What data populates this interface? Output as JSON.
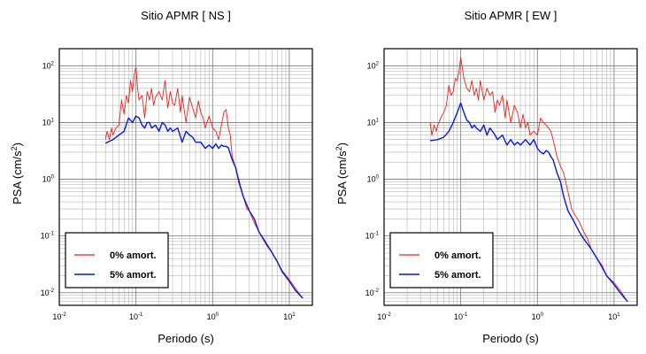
{
  "chart_data": [
    {
      "type": "line",
      "title": "Sitio APMR [ NS ]",
      "xlabel": "Periodo (s)",
      "ylabel": {
        "base": "PSA (cm/s",
        "sup": "2",
        "close": ")"
      },
      "xscale": "log",
      "yscale": "log",
      "xlim": [
        0.01,
        20
      ],
      "ylim": [
        0.006,
        200
      ],
      "grid": true,
      "legend_position": "lower-left",
      "xticks": [
        {
          "base": "10",
          "exp": "-2",
          "value": 0.01
        },
        {
          "base": "10",
          "exp": "-1",
          "value": 0.1
        },
        {
          "base": "10",
          "exp": "0",
          "value": 1
        },
        {
          "base": "10",
          "exp": "1",
          "value": 10
        }
      ],
      "yticks": [
        {
          "base": "10",
          "exp": "-2",
          "value": 0.01
        },
        {
          "base": "10",
          "exp": "-1",
          "value": 0.1
        },
        {
          "base": "10",
          "exp": "0",
          "value": 1
        },
        {
          "base": "10",
          "exp": "1",
          "value": 10
        },
        {
          "base": "10",
          "exp": "2",
          "value": 100
        }
      ],
      "series": [
        {
          "name": "0% amort.",
          "color": "#e8231f",
          "x": [
            0.04,
            0.042,
            0.045,
            0.048,
            0.05,
            0.055,
            0.06,
            0.065,
            0.07,
            0.075,
            0.08,
            0.085,
            0.09,
            0.095,
            0.1,
            0.105,
            0.11,
            0.12,
            0.13,
            0.14,
            0.15,
            0.16,
            0.17,
            0.18,
            0.2,
            0.22,
            0.24,
            0.26,
            0.28,
            0.3,
            0.32,
            0.35,
            0.38,
            0.4,
            0.45,
            0.5,
            0.55,
            0.6,
            0.65,
            0.7,
            0.75,
            0.8,
            0.9,
            1.0,
            1.1,
            1.2,
            1.3,
            1.4,
            1.5,
            1.6,
            1.7,
            1.8,
            1.9,
            2.0,
            2.2,
            2.5,
            2.8,
            3.0,
            3.5,
            4.0,
            4.5,
            5.0,
            6.0,
            7.0,
            8.0,
            10,
            12,
            15
          ],
          "y": [
            5,
            7,
            5,
            8,
            6,
            8,
            9,
            25,
            14,
            30,
            22,
            55,
            35,
            70,
            95,
            40,
            25,
            30,
            12,
            35,
            25,
            40,
            20,
            28,
            35,
            25,
            55,
            18,
            35,
            22,
            20,
            40,
            15,
            30,
            10,
            28,
            18,
            12,
            24,
            15,
            12,
            8,
            13,
            8,
            7,
            5,
            9,
            15,
            17,
            8,
            6,
            2.5,
            2.0,
            1.5,
            1.0,
            0.5,
            0.3,
            0.28,
            0.17,
            0.12,
            0.09,
            0.07,
            0.05,
            0.035,
            0.025,
            0.017,
            0.012,
            0.008
          ]
        },
        {
          "name": "5% amort.",
          "color": "#0a18d8",
          "x": [
            0.04,
            0.05,
            0.06,
            0.07,
            0.08,
            0.09,
            0.1,
            0.11,
            0.12,
            0.13,
            0.14,
            0.15,
            0.16,
            0.18,
            0.2,
            0.22,
            0.24,
            0.26,
            0.28,
            0.3,
            0.35,
            0.4,
            0.45,
            0.5,
            0.55,
            0.6,
            0.7,
            0.8,
            0.9,
            1.0,
            1.1,
            1.2,
            1.3,
            1.4,
            1.5,
            1.6,
            1.8,
            2.0,
            2.2,
            2.5,
            3.0,
            3.5,
            4.0,
            5.0,
            6.0,
            7.0,
            8.0,
            10,
            12,
            15
          ],
          "y": [
            4.3,
            5,
            6,
            7,
            12,
            10,
            13,
            12,
            9,
            8,
            10,
            10,
            8,
            9,
            7,
            10,
            9,
            7,
            8,
            7,
            8,
            4.5,
            7,
            6,
            5.5,
            4.5,
            4.5,
            3.5,
            4,
            3.5,
            4.2,
            3.5,
            4,
            3.8,
            3.8,
            3.6,
            2.2,
            1.6,
            0.9,
            0.5,
            0.28,
            0.2,
            0.12,
            0.075,
            0.05,
            0.035,
            0.024,
            0.016,
            0.011,
            0.008
          ]
        }
      ]
    },
    {
      "type": "line",
      "title": "Sitio APMR [ EW ]",
      "xlabel": "Periodo (s)",
      "ylabel": {
        "base": "PSA (cm/s",
        "sup": "2",
        "close": ")"
      },
      "xscale": "log",
      "yscale": "log",
      "xlim": [
        0.01,
        20
      ],
      "ylim": [
        0.006,
        200
      ],
      "grid": true,
      "legend_position": "lower-left",
      "xticks": [
        {
          "base": "10",
          "exp": "-2",
          "value": 0.01
        },
        {
          "base": "10",
          "exp": "-1",
          "value": 0.1
        },
        {
          "base": "10",
          "exp": "0",
          "value": 1
        },
        {
          "base": "10",
          "exp": "1",
          "value": 10
        }
      ],
      "yticks": [
        {
          "base": "10",
          "exp": "-2",
          "value": 0.01
        },
        {
          "base": "10",
          "exp": "-1",
          "value": 0.1
        },
        {
          "base": "10",
          "exp": "0",
          "value": 1
        },
        {
          "base": "10",
          "exp": "1",
          "value": 10
        },
        {
          "base": "10",
          "exp": "2",
          "value": 100
        }
      ],
      "series": [
        {
          "name": "0% amort.",
          "color": "#e8231f",
          "x": [
            0.04,
            0.042,
            0.045,
            0.048,
            0.05,
            0.055,
            0.06,
            0.065,
            0.07,
            0.075,
            0.08,
            0.085,
            0.09,
            0.095,
            0.1,
            0.105,
            0.11,
            0.12,
            0.13,
            0.14,
            0.15,
            0.16,
            0.17,
            0.18,
            0.2,
            0.22,
            0.24,
            0.26,
            0.28,
            0.3,
            0.32,
            0.35,
            0.38,
            0.4,
            0.45,
            0.5,
            0.55,
            0.6,
            0.65,
            0.7,
            0.75,
            0.8,
            0.9,
            1.0,
            1.1,
            1.2,
            1.3,
            1.4,
            1.5,
            1.6,
            1.8,
            2.0,
            2.2,
            2.5,
            2.8,
            3.0,
            3.5,
            4.0,
            4.5,
            5.0,
            6.0,
            7.0,
            8.0,
            10,
            12,
            15
          ],
          "y": [
            10,
            6,
            9,
            7,
            9,
            12,
            15,
            20,
            45,
            30,
            35,
            60,
            55,
            80,
            140,
            90,
            60,
            40,
            35,
            55,
            30,
            40,
            25,
            55,
            25,
            40,
            30,
            35,
            15,
            25,
            20,
            30,
            12,
            25,
            10,
            20,
            15,
            8,
            14,
            8,
            10,
            6,
            7,
            6,
            12,
            10,
            9,
            8,
            7,
            5,
            2.5,
            1.7,
            1.3,
            0.6,
            0.3,
            0.25,
            0.18,
            0.12,
            0.09,
            0.06,
            0.04,
            0.03,
            0.02,
            0.015,
            0.011,
            0.007
          ]
        },
        {
          "name": "5% amort.",
          "color": "#0a18d8",
          "x": [
            0.04,
            0.05,
            0.06,
            0.07,
            0.08,
            0.09,
            0.1,
            0.11,
            0.12,
            0.13,
            0.14,
            0.15,
            0.16,
            0.18,
            0.2,
            0.22,
            0.24,
            0.26,
            0.28,
            0.3,
            0.35,
            0.4,
            0.45,
            0.5,
            0.55,
            0.6,
            0.7,
            0.8,
            0.9,
            1.0,
            1.1,
            1.2,
            1.3,
            1.4,
            1.5,
            1.6,
            1.8,
            2.0,
            2.2,
            2.5,
            3.0,
            3.5,
            4.0,
            5.0,
            6.0,
            7.0,
            8.0,
            10,
            12,
            15
          ],
          "y": [
            4.8,
            5,
            5.5,
            7,
            10,
            15,
            22,
            15,
            11,
            10,
            8,
            9,
            8,
            7,
            9,
            6,
            8,
            7,
            6,
            5,
            6,
            4,
            5,
            4,
            4.5,
            4,
            5,
            4,
            5,
            3.5,
            3.0,
            2.8,
            3.2,
            3.0,
            2.5,
            2.2,
            1.3,
            0.9,
            0.5,
            0.28,
            0.18,
            0.12,
            0.09,
            0.06,
            0.04,
            0.028,
            0.02,
            0.014,
            0.01,
            0.007
          ]
        }
      ]
    }
  ]
}
